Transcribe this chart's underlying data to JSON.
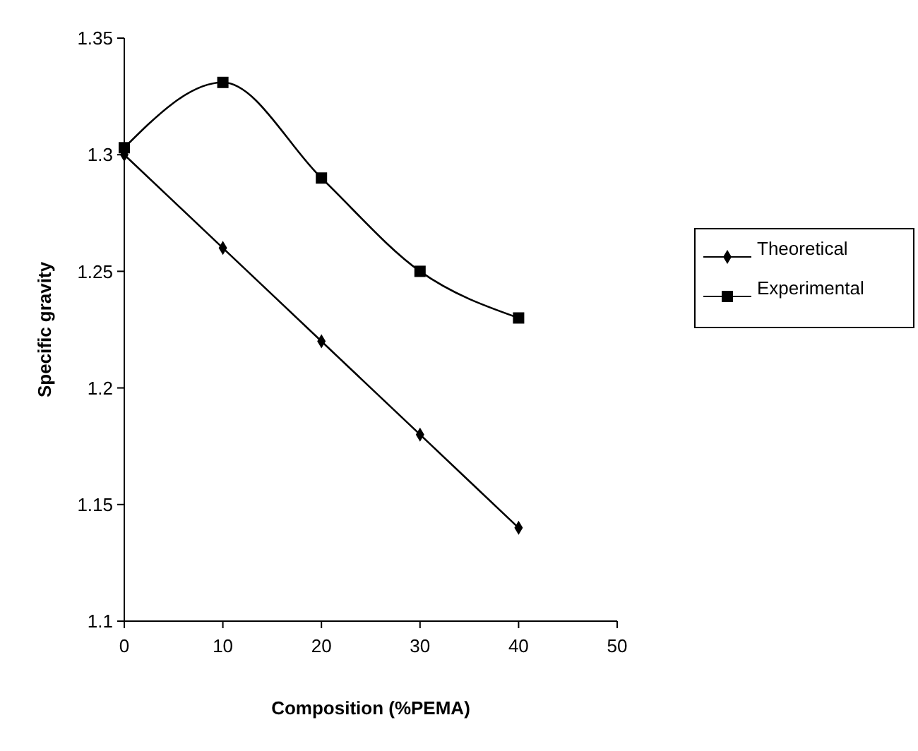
{
  "chart_data": {
    "type": "line",
    "xlabel": "Composition (%PEMA)",
    "ylabel": "Specific gravity",
    "x": [
      0,
      10,
      20,
      30,
      40
    ],
    "series": [
      {
        "name": "Theoretical",
        "color": "#000000",
        "marker": "diamond",
        "values": [
          1.3,
          1.26,
          1.22,
          1.18,
          1.14
        ]
      },
      {
        "name": "Experimental",
        "color": "#000000",
        "marker": "square",
        "values": [
          1.303,
          1.331,
          1.29,
          1.25,
          1.23
        ]
      }
    ],
    "xlim": [
      0,
      50
    ],
    "xticks": [
      0,
      10,
      20,
      30,
      40,
      50
    ],
    "ylim": [
      1.1,
      1.35
    ],
    "yticks": [
      1.1,
      1.15,
      1.2,
      1.25,
      1.3,
      1.35
    ],
    "grid": false,
    "legend": "right"
  }
}
